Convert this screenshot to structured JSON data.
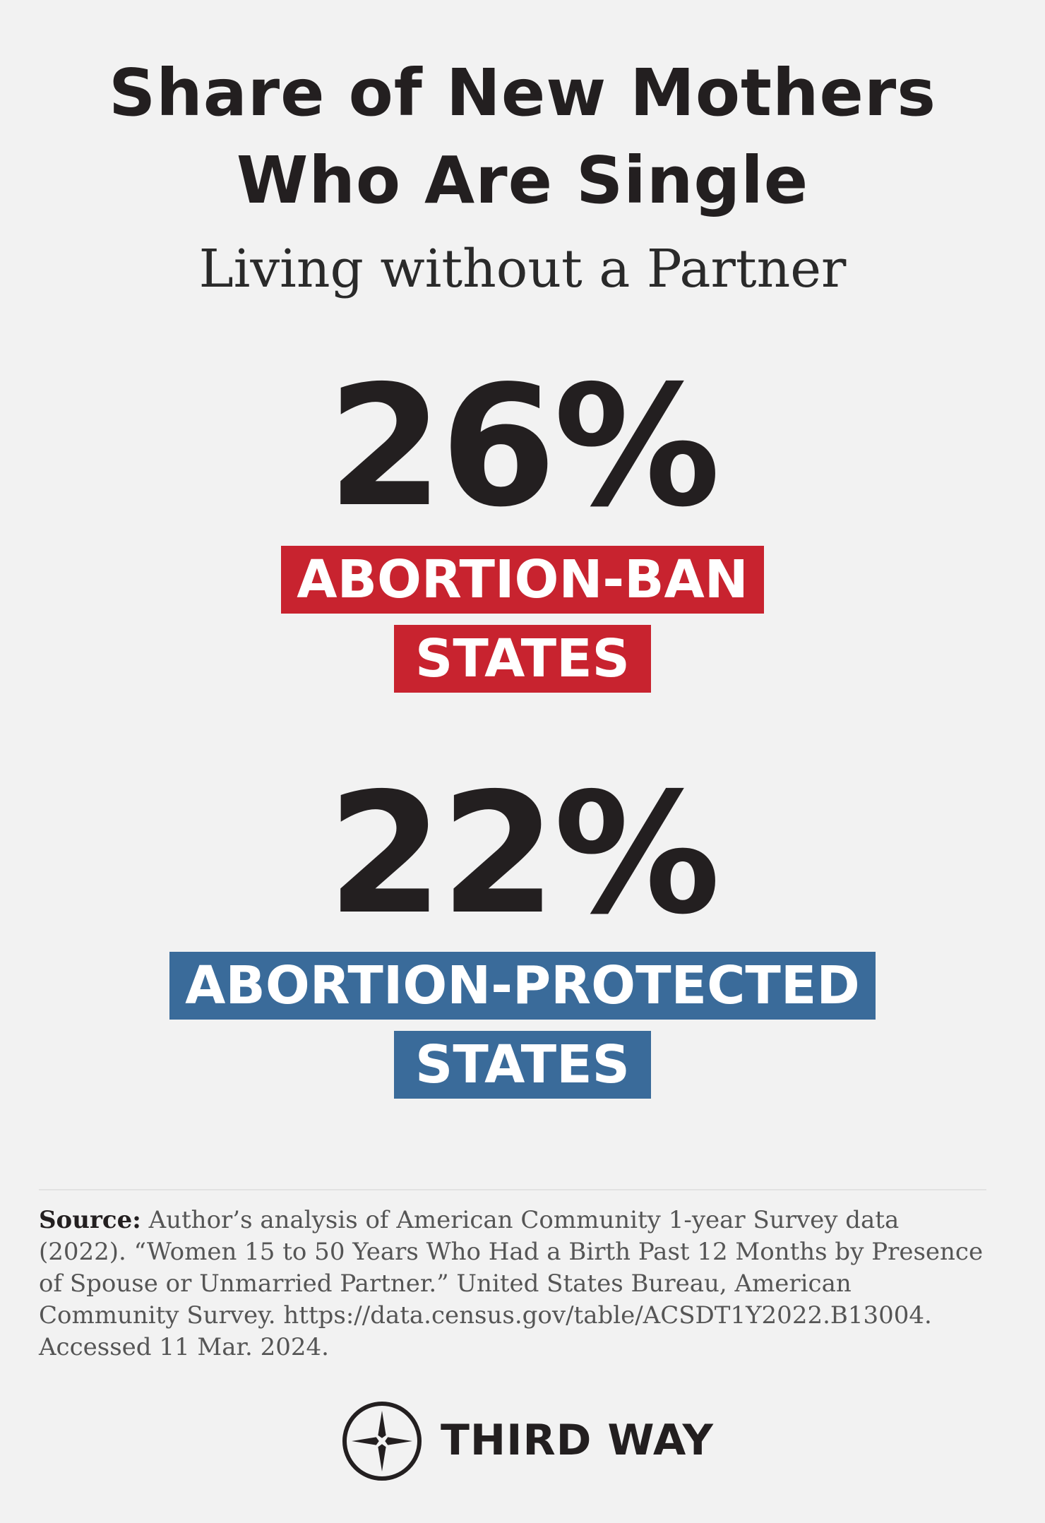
{
  "header": {
    "title_lines": [
      "Share of New Mothers",
      "Who Are Single"
    ],
    "subtitle": "Living without a Partner"
  },
  "stats": [
    {
      "value": "26%",
      "label_lines": [
        "ABORTION-BAN",
        "STATES"
      ],
      "color": "#c8232f"
    },
    {
      "value": "22%",
      "label_lines": [
        "ABORTION-PROTECTED",
        "STATES"
      ],
      "color": "#3a6b9a"
    }
  ],
  "source": {
    "label": "Source:",
    "lines": [
      "Author’s analysis of American Community 1-year Survey data",
      "(2022). “Women 15 to 50 Years Who Had a Birth Past 12 Months by Presence",
      "of Spouse or Unmarried Partner.” United States Bureau, American",
      "Community Survey. https://data.census.gov/table/ACSDT1Y2022.B13004.",
      "Accessed 11 Mar. 2024."
    ]
  },
  "footer": {
    "brand": "THIRD WAY"
  }
}
